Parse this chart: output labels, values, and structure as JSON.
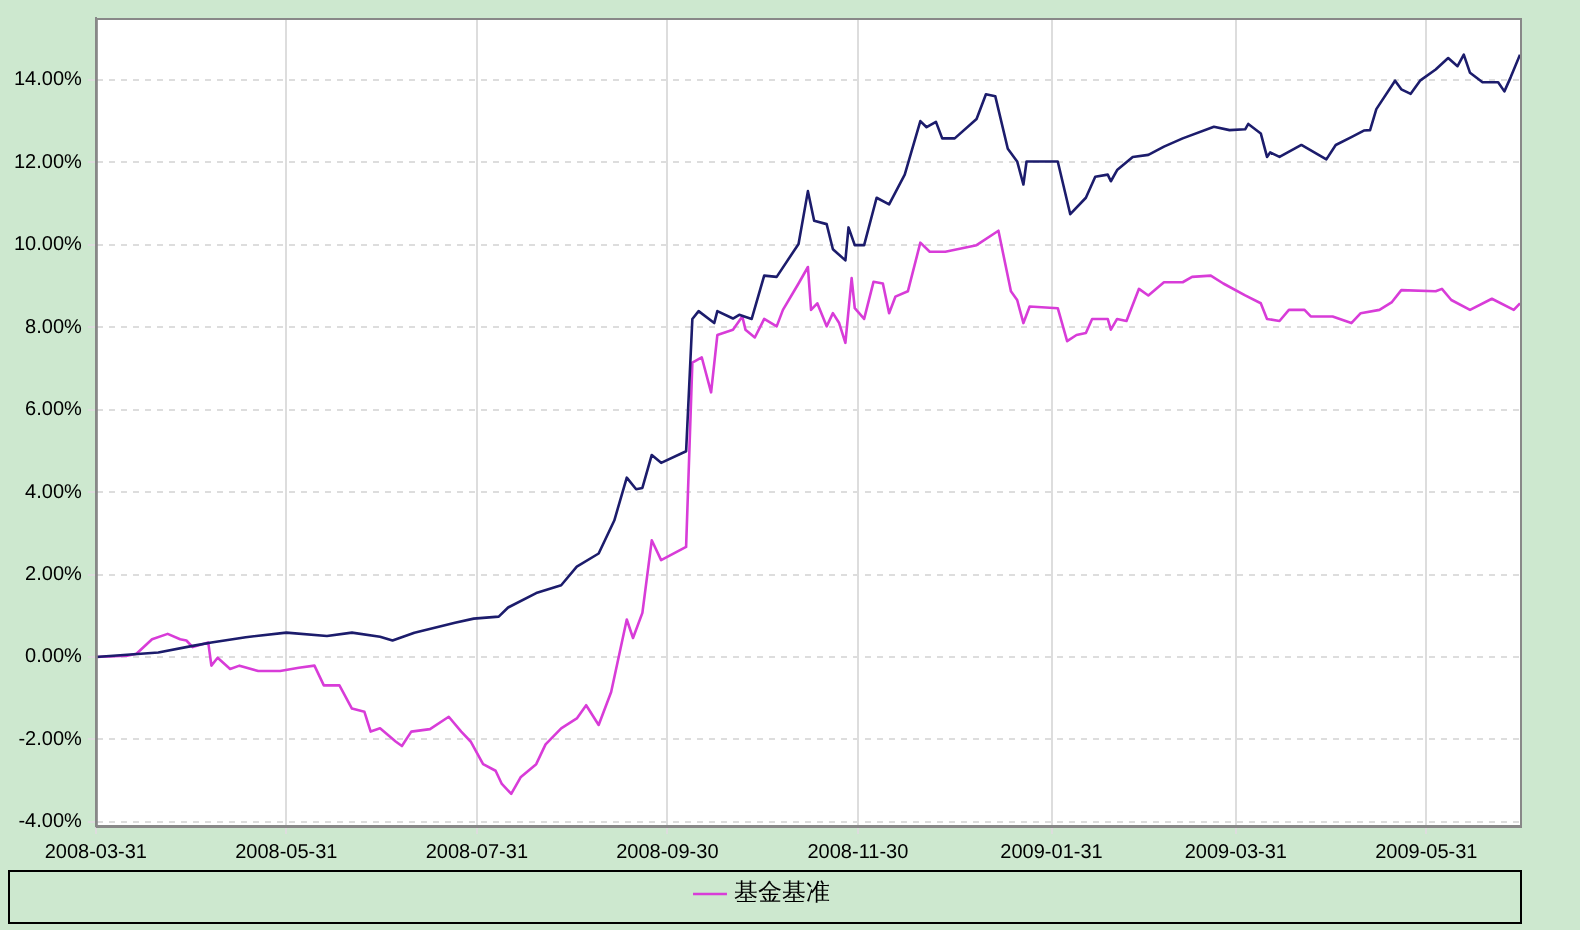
{
  "chart_data": {
    "type": "line",
    "xlim": [
      "2008-03-31",
      "2009-06-30"
    ],
    "ylim": [
      -4.1,
      15.5
    ],
    "xticks": [
      "2008-03-31",
      "2008-05-31",
      "2008-07-31",
      "2008-09-30",
      "2008-11-30",
      "2009-01-31",
      "2009-03-31",
      "2009-05-31"
    ],
    "yticks": [
      {
        "value": -4,
        "label": "-4.00%"
      },
      {
        "value": -2,
        "label": "-2.00%"
      },
      {
        "value": 0,
        "label": "0.00%"
      },
      {
        "value": 2,
        "label": "2.00%"
      },
      {
        "value": 4,
        "label": "4.00%"
      },
      {
        "value": 6,
        "label": "6.00%"
      },
      {
        "value": 8,
        "label": "8.00%"
      },
      {
        "value": 10,
        "label": "10.00%"
      },
      {
        "value": 12,
        "label": "12.00%"
      },
      {
        "value": 14,
        "label": "14.00%"
      }
    ],
    "grid": true,
    "legend": "bottom",
    "marker": "none",
    "line_style": "solid",
    "series": [
      {
        "color": "#1c1c6c",
        "x": [
          "2008-03-31",
          "2008-04-20",
          "2008-05-01",
          "2008-05-07",
          "2008-05-18",
          "2008-05-31",
          "2008-06-13",
          "2008-06-21",
          "2008-06-30",
          "2008-07-04",
          "2008-07-11",
          "2008-07-24",
          "2008-07-30",
          "2008-08-07",
          "2008-08-10",
          "2008-08-19",
          "2008-08-27",
          "2008-09-01",
          "2008-09-08",
          "2008-09-13",
          "2008-09-17",
          "2008-09-20",
          "2008-09-22",
          "2008-09-25",
          "2008-09-28",
          "2008-10-06",
          "2008-10-08",
          "2008-10-10",
          "2008-10-15",
          "2008-10-16",
          "2008-10-21",
          "2008-10-23",
          "2008-10-27",
          "2008-10-31",
          "2008-11-04",
          "2008-11-11",
          "2008-11-14",
          "2008-11-16",
          "2008-11-20",
          "2008-11-22",
          "2008-11-26",
          "2008-11-27",
          "2008-11-29",
          "2008-12-02",
          "2008-12-06",
          "2008-12-10",
          "2008-12-15",
          "2008-12-20",
          "2008-12-22",
          "2008-12-25",
          "2008-12-27",
          "2008-12-31",
          "2009-01-07",
          "2009-01-10",
          "2009-01-13",
          "2009-01-17",
          "2009-01-20",
          "2009-01-22",
          "2009-01-23",
          "2009-02-02",
          "2009-02-06",
          "2009-02-11",
          "2009-02-14",
          "2009-02-18",
          "2009-02-19",
          "2009-02-21",
          "2009-02-26",
          "2009-03-03",
          "2009-03-08",
          "2009-03-14",
          "2009-03-24",
          "2009-03-29",
          "2009-04-03",
          "2009-04-04",
          "2009-04-08",
          "2009-04-10",
          "2009-04-11",
          "2009-04-14",
          "2009-04-21",
          "2009-04-29",
          "2009-05-02",
          "2009-05-07",
          "2009-05-11",
          "2009-05-13",
          "2009-05-15",
          "2009-05-21",
          "2009-05-23",
          "2009-05-26",
          "2009-05-29",
          "2009-06-03",
          "2009-06-07",
          "2009-06-10",
          "2009-06-12",
          "2009-06-14",
          "2009-06-18",
          "2009-06-23",
          "2009-06-25",
          "2009-06-27",
          "2009-06-30"
        ],
        "values": [
          0,
          0.11,
          0.27,
          0.35,
          0.48,
          0.59,
          0.51,
          0.59,
          0.49,
          0.4,
          0.59,
          0.83,
          0.93,
          0.98,
          1.2,
          1.55,
          1.74,
          2.19,
          2.51,
          3.31,
          4.35,
          4.07,
          4.1,
          4.9,
          4.71,
          4.99,
          8.2,
          8.39,
          8.1,
          8.39,
          8.21,
          8.3,
          8.2,
          9.25,
          9.22,
          10.02,
          11.3,
          10.58,
          10.5,
          9.89,
          9.62,
          10.42,
          9.99,
          9.99,
          11.14,
          10.98,
          11.7,
          13.0,
          12.85,
          12.98,
          12.58,
          12.58,
          13.05,
          13.65,
          13.6,
          12.33,
          12.02,
          11.46,
          12.02,
          12.02,
          10.74,
          11.14,
          11.65,
          11.7,
          11.54,
          11.81,
          12.13,
          12.18,
          12.38,
          12.58,
          12.86,
          12.78,
          12.8,
          12.93,
          12.7,
          12.13,
          12.24,
          12.13,
          12.42,
          12.07,
          12.42,
          12.61,
          12.77,
          12.78,
          13.29,
          13.98,
          13.77,
          13.66,
          13.98,
          14.25,
          14.53,
          14.33,
          14.61,
          14.17,
          13.94,
          13.94,
          13.72,
          14.06,
          14.61
        ]
      },
      {
        "name": "基金基准",
        "color": "#d83cd8",
        "x": [
          "2008-03-31",
          "2008-04-10",
          "2008-04-13",
          "2008-04-18",
          "2008-04-23",
          "2008-04-27",
          "2008-04-29",
          "2008-05-01",
          "2008-05-06",
          "2008-05-07",
          "2008-05-09",
          "2008-05-13",
          "2008-05-16",
          "2008-05-22",
          "2008-05-29",
          "2008-06-04",
          "2008-06-09",
          "2008-06-12",
          "2008-06-17",
          "2008-06-21",
          "2008-06-25",
          "2008-06-27",
          "2008-06-30",
          "2008-07-05",
          "2008-07-07",
          "2008-07-10",
          "2008-07-16",
          "2008-07-22",
          "2008-07-26",
          "2008-07-29",
          "2008-08-02",
          "2008-08-06",
          "2008-08-08",
          "2008-08-11",
          "2008-08-14",
          "2008-08-19",
          "2008-08-22",
          "2008-08-27",
          "2008-09-01",
          "2008-09-04",
          "2008-09-08",
          "2008-09-12",
          "2008-09-17",
          "2008-09-19",
          "2008-09-22",
          "2008-09-25",
          "2008-09-28",
          "2008-10-06",
          "2008-10-08",
          "2008-10-11",
          "2008-10-14",
          "2008-10-16",
          "2008-10-21",
          "2008-10-24",
          "2008-10-25",
          "2008-10-28",
          "2008-10-31",
          "2008-11-04",
          "2008-11-06",
          "2008-11-11",
          "2008-11-14",
          "2008-11-15",
          "2008-11-17",
          "2008-11-20",
          "2008-11-22",
          "2008-11-24",
          "2008-11-26",
          "2008-11-28",
          "2008-11-29",
          "2008-12-02",
          "2008-12-05",
          "2008-12-08",
          "2008-12-10",
          "2008-12-12",
          "2008-12-16",
          "2008-12-20",
          "2008-12-23",
          "2008-12-28",
          "2009-01-07",
          "2009-01-14",
          "2009-01-18",
          "2009-01-20",
          "2009-01-22",
          "2009-01-24",
          "2009-02-02",
          "2009-02-05",
          "2009-02-08",
          "2009-02-11",
          "2009-02-13",
          "2009-02-18",
          "2009-02-19",
          "2009-02-21",
          "2009-02-24",
          "2009-02-28",
          "2009-03-03",
          "2009-03-08",
          "2009-03-14",
          "2009-03-17",
          "2009-03-23",
          "2009-03-27",
          "2009-04-03",
          "2009-04-08",
          "2009-04-10",
          "2009-04-14",
          "2009-04-17",
          "2009-04-22",
          "2009-04-24",
          "2009-05-01",
          "2009-05-07",
          "2009-05-10",
          "2009-05-16",
          "2009-05-20",
          "2009-05-23",
          "2009-06-03",
          "2009-06-05",
          "2009-06-08",
          "2009-06-14",
          "2009-06-21",
          "2009-06-28",
          "2009-06-30"
        ],
        "values": [
          0,
          0.03,
          0.08,
          0.43,
          0.56,
          0.43,
          0.4,
          0.24,
          0.35,
          -0.21,
          -0.02,
          -0.29,
          -0.21,
          -0.34,
          -0.34,
          -0.26,
          -0.21,
          -0.69,
          -0.69,
          -1.25,
          -1.33,
          -1.81,
          -1.73,
          -2.05,
          -2.16,
          -1.81,
          -1.75,
          -1.45,
          -1.81,
          -2.05,
          -2.6,
          -2.76,
          -3.08,
          -3.32,
          -2.92,
          -2.6,
          -2.12,
          -1.73,
          -1.49,
          -1.17,
          -1.65,
          -0.85,
          0.91,
          0.46,
          1.07,
          2.83,
          2.35,
          2.67,
          7.14,
          7.27,
          6.42,
          7.81,
          7.94,
          8.26,
          7.94,
          7.75,
          8.2,
          8.02,
          8.42,
          9.06,
          9.46,
          8.42,
          8.58,
          8.02,
          8.34,
          8.1,
          7.62,
          9.19,
          8.46,
          8.2,
          9.1,
          9.06,
          8.34,
          8.74,
          8.87,
          10.05,
          9.83,
          9.83,
          9.99,
          10.34,
          8.87,
          8.66,
          8.1,
          8.5,
          8.46,
          7.66,
          7.81,
          7.86,
          8.2,
          8.2,
          7.94,
          8.2,
          8.15,
          8.93,
          8.77,
          9.09,
          9.09,
          9.22,
          9.25,
          9.06,
          8.77,
          8.58,
          8.2,
          8.15,
          8.42,
          8.42,
          8.26,
          8.26,
          8.1,
          8.34,
          8.42,
          8.61,
          8.9,
          8.87,
          8.93,
          8.66,
          8.42,
          8.69,
          8.42,
          8.58
        ]
      }
    ]
  }
}
